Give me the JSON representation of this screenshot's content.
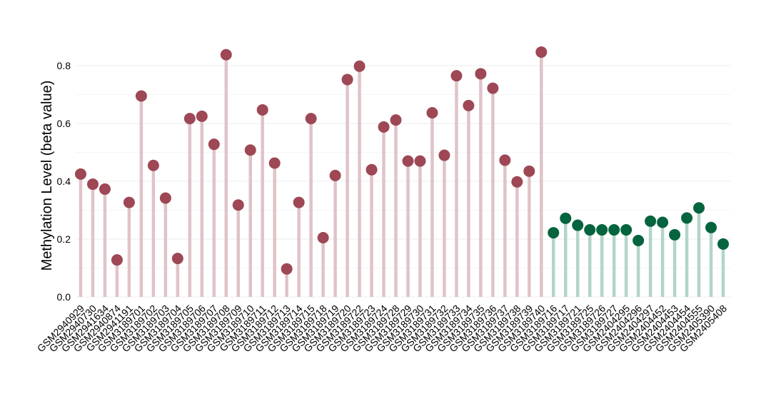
{
  "chart_data": {
    "type": "lollipop",
    "title": "",
    "xlabel": "",
    "ylabel": "Methylation Level (beta value)",
    "ylim": [
      0,
      0.88
    ],
    "yticks": [
      "0.0",
      "0.2",
      "0.4",
      "0.6",
      "0.8"
    ],
    "ytick_values": [
      0,
      0.2,
      0.4,
      0.6,
      0.8
    ],
    "grid": true,
    "legend": "none",
    "colors": {
      "group_a_point": "#9e4755",
      "group_a_stem": "#e0c3c8",
      "group_b_point": "#04643e",
      "group_b_stem": "#b2d5c9"
    },
    "categories": [
      "GSM2940929",
      "GSM2940730",
      "GSM2941634",
      "GSM2940874",
      "GSM2941191",
      "GSM3189701",
      "GSM3189702",
      "GSM3189703",
      "GSM3189704",
      "GSM3189705",
      "GSM3189706",
      "GSM3189707",
      "GSM3189708",
      "GSM3189709",
      "GSM3189710",
      "GSM3189711",
      "GSM3189712",
      "GSM3189713",
      "GSM3189714",
      "GSM3189715",
      "GSM3189718",
      "GSM3189719",
      "GSM3189720",
      "GSM3189722",
      "GSM3189723",
      "GSM3189724",
      "GSM3189728",
      "GSM3189729",
      "GSM3189730",
      "GSM3189731",
      "GSM3189732",
      "GSM3189733",
      "GSM3189734",
      "GSM3189735",
      "GSM3189736",
      "GSM3189737",
      "GSM3189738",
      "GSM3189739",
      "GSM3189740",
      "GSM3189716",
      "GSM3189717",
      "GSM3189721",
      "GSM3189725",
      "GSM3189726",
      "GSM3189727",
      "GSM2404295",
      "GSM2404296",
      "GSM2404297",
      "GSM2404452",
      "GSM2404453",
      "GSM2404454",
      "GSM2404555",
      "GSM2405390",
      "GSM2405408"
    ],
    "values": [
      0.425,
      0.39,
      0.373,
      0.128,
      0.327,
      0.695,
      0.455,
      0.342,
      0.133,
      0.617,
      0.625,
      0.528,
      0.838,
      0.318,
      0.508,
      0.647,
      0.463,
      0.097,
      0.327,
      0.617,
      0.205,
      0.42,
      0.752,
      0.798,
      0.44,
      0.588,
      0.612,
      0.47,
      0.47,
      0.637,
      0.49,
      0.765,
      0.662,
      0.772,
      0.722,
      0.473,
      0.398,
      0.435,
      0.847,
      0.222,
      0.272,
      0.248,
      0.232,
      0.232,
      0.232,
      0.232,
      0.195,
      0.262,
      0.258,
      0.215,
      0.273,
      0.308,
      0.24,
      0.183
    ],
    "groups": [
      "a",
      "a",
      "a",
      "a",
      "a",
      "a",
      "a",
      "a",
      "a",
      "a",
      "a",
      "a",
      "a",
      "a",
      "a",
      "a",
      "a",
      "a",
      "a",
      "a",
      "a",
      "a",
      "a",
      "a",
      "a",
      "a",
      "a",
      "a",
      "a",
      "a",
      "a",
      "a",
      "a",
      "a",
      "a",
      "a",
      "a",
      "a",
      "a",
      "b",
      "b",
      "b",
      "b",
      "b",
      "b",
      "b",
      "b",
      "b",
      "b",
      "b",
      "b",
      "b",
      "b",
      "b"
    ]
  }
}
